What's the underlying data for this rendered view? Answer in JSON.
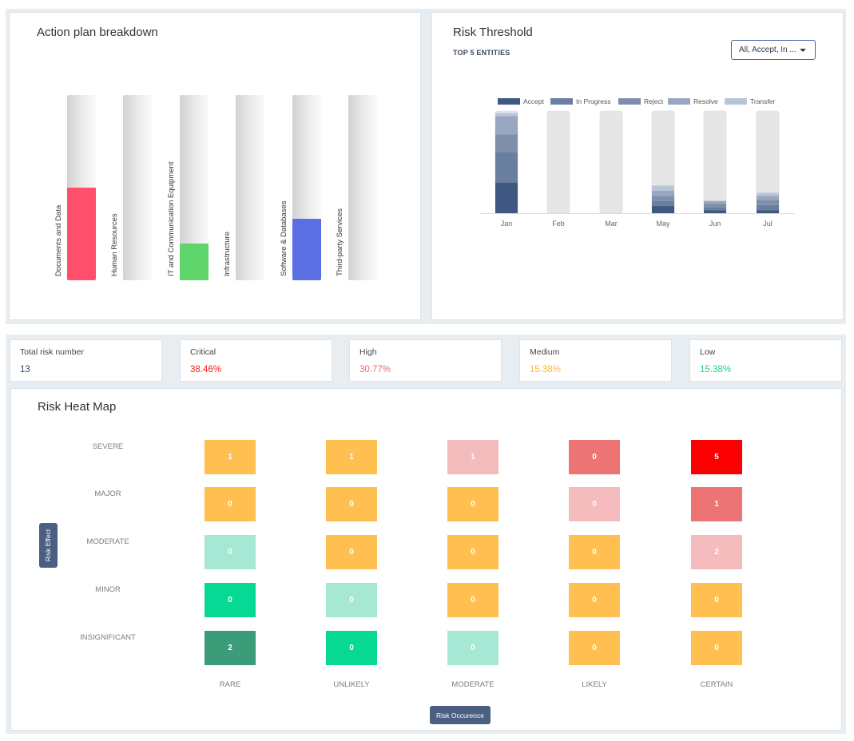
{
  "action_plan": {
    "title": "Action plan breakdown",
    "bars": [
      {
        "label": "Documents and Data",
        "fill_fraction": 0.5,
        "color": "#ff4f6a"
      },
      {
        "label": "Human Resources",
        "fill_fraction": 0,
        "color": "#cccccc"
      },
      {
        "label": "IT and Communication Equipment",
        "fill_fraction": 0.2,
        "color": "#5fd46a"
      },
      {
        "label": "Infrastructure",
        "fill_fraction": 0,
        "color": "#cccccc"
      },
      {
        "label": "Software & Databases",
        "fill_fraction": 0.33,
        "color": "#5b6ee2"
      },
      {
        "label": "Third-party Services",
        "fill_fraction": 0,
        "color": "#cccccc"
      }
    ]
  },
  "risk_threshold": {
    "title": "Risk Threshold",
    "subtitle": "TOP 5 ENTITIES",
    "dropdown_value": "All, Accept, In ..."
  },
  "chart_data": {
    "type": "bar",
    "stacked": true,
    "categories": [
      "Jan",
      "Feb",
      "Mar",
      "May",
      "Jun",
      "Jul"
    ],
    "series": [
      {
        "name": "Accept",
        "color": "#3f5882",
        "values": [
          0.3,
          0,
          0,
          0.07,
          0.03,
          0.03
        ]
      },
      {
        "name": "In Progress",
        "color": "#6a7ea0",
        "values": [
          0.3,
          0,
          0,
          0.05,
          0.03,
          0.05
        ]
      },
      {
        "name": "Reject",
        "color": "#7f8fab",
        "values": [
          0.17,
          0,
          0,
          0.05,
          0.03,
          0.05
        ]
      },
      {
        "name": "Resolve",
        "color": "#98a6bf",
        "values": [
          0.18,
          0,
          0,
          0.05,
          0.03,
          0.04
        ]
      },
      {
        "name": "Transfer",
        "color": "#b8c4d9",
        "values": [
          0.03,
          0,
          0,
          0.05,
          0,
          0.03
        ]
      }
    ],
    "ylim": [
      0,
      1
    ],
    "legend_position": "top",
    "grid": false
  },
  "stats": [
    {
      "label": "Total risk number",
      "value": "13",
      "color": "#2c4a6e"
    },
    {
      "label": "Critical",
      "value": "38.46%",
      "color": "#ff1a1a"
    },
    {
      "label": "High",
      "value": "30.77%",
      "color": "#f16a6a"
    },
    {
      "label": "Medium",
      "value": "15.38%",
      "color": "#ffb830"
    },
    {
      "label": "Low",
      "value": "15.38%",
      "color": "#1fd18a"
    }
  ],
  "heatmap": {
    "title": "Risk Heat Map",
    "y_axis_button": "Risk Effect",
    "x_axis_button": "Risk Occurence",
    "rows": [
      "SEVERE",
      "MAJOR",
      "MODERATE",
      "MINOR",
      "INSIGNIFICANT"
    ],
    "columns": [
      "RARE",
      "UNLIKELY",
      "MODERATE",
      "LIKELY",
      "CERTAIN"
    ],
    "cells": [
      [
        {
          "v": "1",
          "c": "#ffc051"
        },
        {
          "v": "1",
          "c": "#ffc051"
        },
        {
          "v": "1",
          "c": "#f4bcbc"
        },
        {
          "v": "0",
          "c": "#ec7474"
        },
        {
          "v": "5",
          "c": "#fb0000"
        }
      ],
      [
        {
          "v": "0",
          "c": "#ffc051"
        },
        {
          "v": "0",
          "c": "#ffc051"
        },
        {
          "v": "0",
          "c": "#ffc051"
        },
        {
          "v": "0",
          "c": "#f4bcbc"
        },
        {
          "v": "1",
          "c": "#ec7474"
        }
      ],
      [
        {
          "v": "0",
          "c": "#a7e8d4"
        },
        {
          "v": "0",
          "c": "#ffc051"
        },
        {
          "v": "0",
          "c": "#ffc051"
        },
        {
          "v": "0",
          "c": "#ffc051"
        },
        {
          "v": "2",
          "c": "#f4bcbc"
        }
      ],
      [
        {
          "v": "0",
          "c": "#07d994"
        },
        {
          "v": "0",
          "c": "#a7e8d4"
        },
        {
          "v": "0",
          "c": "#ffc051"
        },
        {
          "v": "0",
          "c": "#ffc051"
        },
        {
          "v": "0",
          "c": "#ffc051"
        }
      ],
      [
        {
          "v": "2",
          "c": "#3c9c7a"
        },
        {
          "v": "0",
          "c": "#07d994"
        },
        {
          "v": "0",
          "c": "#a7e8d4"
        },
        {
          "v": "0",
          "c": "#ffc051"
        },
        {
          "v": "0",
          "c": "#ffc051"
        }
      ]
    ]
  }
}
